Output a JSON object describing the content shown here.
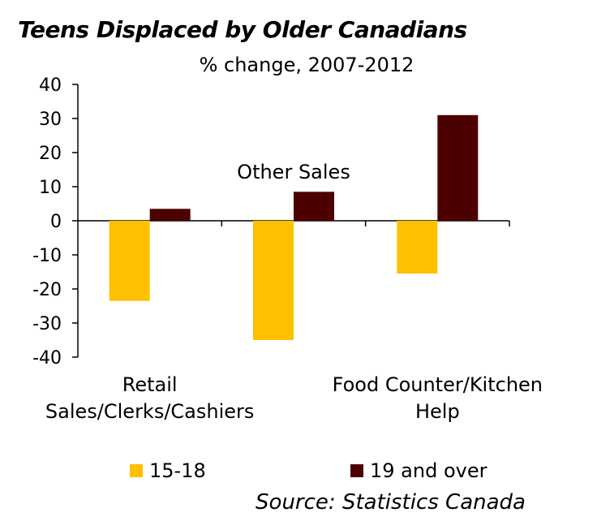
{
  "chart_data": {
    "type": "bar",
    "title": "Teens Displaced by Older Canadians",
    "subtitle": "% change, 2007-2012",
    "categories": [
      "Retail Sales/Clerks/Cashiers",
      "Other Sales",
      "Food Counter/Kitchen Help"
    ],
    "category_label_lines": [
      [
        "Retail",
        "Sales/Clerks/Cashiers"
      ],
      [
        "Other Sales"
      ],
      [
        "Food Counter/Kitchen",
        "Help"
      ]
    ],
    "series": [
      {
        "name": "15-18",
        "color": "#FFC000",
        "values": [
          -23.5,
          -35,
          -15.5
        ]
      },
      {
        "name": "19 and over",
        "color": "#4D0000",
        "values": [
          3.5,
          8.5,
          31
        ]
      }
    ],
    "ylim": [
      -40,
      40
    ],
    "yticks": [
      40,
      30,
      20,
      10,
      0,
      -10,
      -20,
      -30,
      -40
    ],
    "xlabel": "",
    "ylabel": "",
    "grid": false,
    "legend_position": "bottom",
    "source": "Source: Statistics Canada"
  }
}
